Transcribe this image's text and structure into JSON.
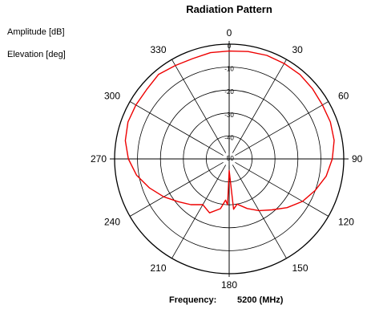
{
  "header": {
    "title": "Radiation Pattern"
  },
  "side_labels": {
    "amplitude": "Amplitude [dB]",
    "elevation": "Elevation [deg]"
  },
  "footer": {
    "frequency_label": "Frequency:",
    "frequency_value": "5200 (MHz)"
  },
  "chart_data": {
    "type": "line",
    "coordinate_system": "polar",
    "title": "Radiation Pattern",
    "angle_unit": "deg",
    "radial_unit": "dB",
    "angle_ticks": [
      0,
      30,
      60,
      90,
      120,
      150,
      180,
      210,
      240,
      270,
      300,
      330
    ],
    "radial_ticks": [
      0,
      -10,
      -20,
      -30,
      -40,
      -50
    ],
    "radial_range": [
      -50,
      0
    ],
    "grid": true,
    "line_color": "#ee0000",
    "series": [
      {
        "angles": [
          0,
          10,
          20,
          30,
          40,
          50,
          60,
          70,
          80,
          90,
          100,
          110,
          120,
          130,
          140,
          150,
          160,
          170,
          175,
          180,
          182,
          185,
          190,
          200,
          210,
          220,
          230,
          240,
          250,
          260,
          270,
          280,
          290,
          300,
          310,
          320,
          330,
          340,
          350,
          360
        ],
        "values": [
          -3,
          -2.5,
          -2,
          -2,
          -2,
          -2.5,
          -3,
          -3,
          -3.5,
          -5,
          -7,
          -10,
          -13,
          -17,
          -21,
          -24,
          -27,
          -30,
          -28,
          -45,
          -30,
          -32,
          -28,
          -25,
          -27,
          -24,
          -21,
          -17,
          -13,
          -9,
          -6,
          -4,
          -3,
          -3,
          -3,
          -2,
          -3,
          -3.5,
          -3,
          -3
        ]
      }
    ]
  }
}
